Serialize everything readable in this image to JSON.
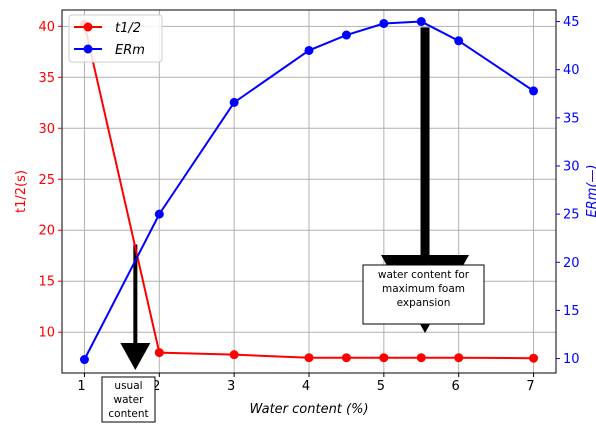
{
  "chart_data": {
    "type": "line",
    "xlabel": "Water content (%)",
    "ylabel_left": "t1/2(s)",
    "ylabel_right": "ERm(—)",
    "x_ticks": [
      "1",
      "2",
      "3",
      "4",
      "5",
      "6",
      "7"
    ],
    "y_left_ticks": [
      "10",
      "15",
      "20",
      "25",
      "30",
      "35",
      "40"
    ],
    "y_right_ticks": [
      "10",
      "15",
      "20",
      "25",
      "30",
      "35",
      "40",
      "45"
    ],
    "x_range": [
      0.7,
      7.3
    ],
    "y_left_range": [
      6.0,
      41.6
    ],
    "y_right_range": [
      8.5,
      46.2
    ],
    "grid": true,
    "legend_position": "top-left",
    "series": [
      {
        "name": "t1/2",
        "axis": "left",
        "color": "#ff0000",
        "x": [
          1,
          2,
          3,
          4,
          4.5,
          5,
          5.5,
          6,
          7
        ],
        "values": [
          40.2,
          8.0,
          7.8,
          7.5,
          7.5,
          7.5,
          7.5,
          7.5,
          7.45
        ]
      },
      {
        "name": "ERm",
        "axis": "right",
        "color": "#0000ff",
        "x": [
          1,
          2,
          3,
          4,
          4.5,
          5,
          5.5,
          6,
          7
        ],
        "values": [
          9.9,
          25.0,
          36.6,
          42.0,
          43.6,
          44.8,
          45.0,
          43.0,
          37.8
        ]
      }
    ],
    "annotations": [
      {
        "id": "usual",
        "lines": [
          "usual",
          "water",
          "content"
        ]
      },
      {
        "id": "max",
        "lines": [
          "water content for",
          "maximum foam",
          "expansion"
        ]
      }
    ]
  }
}
